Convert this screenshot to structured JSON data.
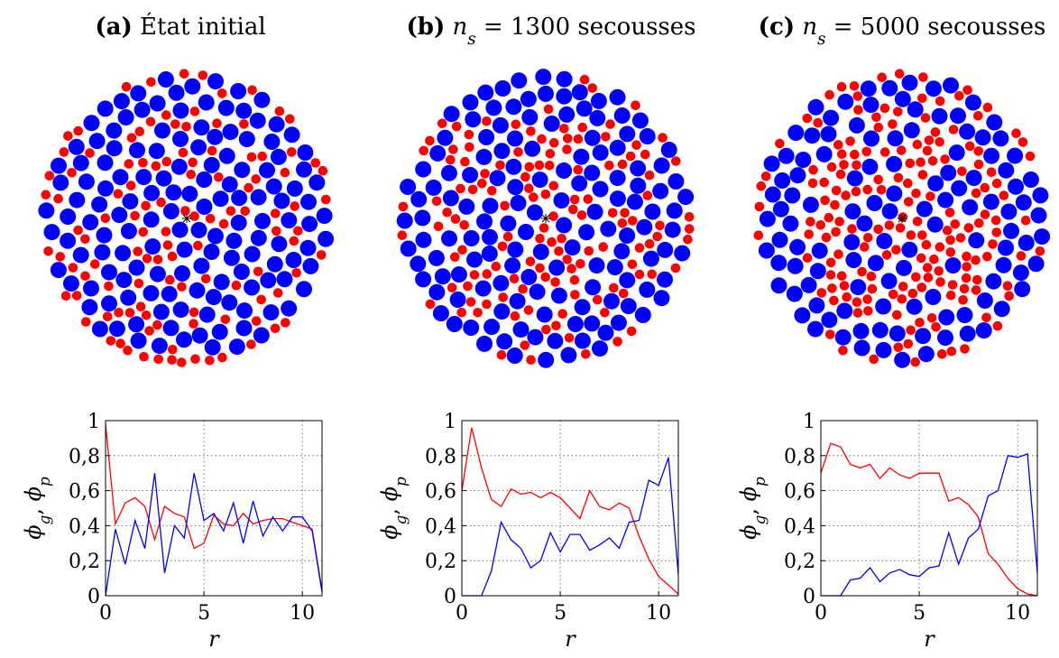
{
  "chart_data": [
    {
      "type": "line",
      "title": [
        {
          "text": "(a)",
          "style": "bold"
        },
        {
          "text": " État initial",
          "style": "normal"
        }
      ],
      "x": [
        0,
        0.5,
        1,
        1.5,
        2,
        2.5,
        3,
        3.5,
        4,
        4.5,
        5,
        5.5,
        6,
        6.5,
        7,
        7.5,
        8,
        8.5,
        9,
        9.5,
        10,
        10.5,
        11
      ],
      "series": [
        {
          "color": "#ff0000",
          "values": [
            0.98,
            0.41,
            0.53,
            0.56,
            0.51,
            0.32,
            0.51,
            0.47,
            0.45,
            0.27,
            0.3,
            0.46,
            0.41,
            0.4,
            0.47,
            0.41,
            0.43,
            0.44,
            0.44,
            0.42,
            0.4,
            0.38,
            0.03
          ]
        },
        {
          "color": "#0000ff",
          "values": [
            0,
            0.38,
            0.18,
            0.43,
            0.27,
            0.7,
            0.13,
            0.4,
            0.33,
            0.7,
            0.43,
            0.47,
            0.37,
            0.53,
            0.3,
            0.54,
            0.34,
            0.45,
            0.37,
            0.45,
            0.45,
            0.37,
            0.02
          ]
        }
      ],
      "xlim": [
        0,
        11
      ],
      "ylim": [
        0,
        1
      ],
      "xticks": [
        0,
        5,
        10
      ],
      "yticks": [
        0,
        {
          "value": 0.2,
          "label": "0,2"
        },
        {
          "value": 0.4,
          "label": "0,4"
        },
        {
          "value": 0.6,
          "label": "0,6"
        },
        {
          "value": 0.8,
          "label": "0,8"
        },
        1
      ],
      "xlabel": "r",
      "ylabel": [
        {
          "text": "ϕ",
          "style": "italic"
        },
        {
          "text": "g",
          "style": "sub"
        },
        {
          "text": ", ",
          "style": "normal"
        },
        {
          "text": "ϕ",
          "style": "italic"
        },
        {
          "text": "p",
          "style": "sub"
        }
      ],
      "grid": true
    },
    {
      "type": "line",
      "title": [
        {
          "text": "(b)",
          "style": "bold"
        },
        {
          "text": " ",
          "style": "normal"
        },
        {
          "text": "n",
          "style": "italic"
        },
        {
          "text": "s",
          "style": "sub"
        },
        {
          "text": " = 1300 secousses",
          "style": "normal"
        }
      ],
      "x": [
        0,
        0.5,
        1,
        1.5,
        2,
        2.5,
        3,
        3.5,
        4,
        4.5,
        5,
        5.5,
        6,
        6.5,
        7,
        7.5,
        8,
        8.5,
        9,
        9.5,
        10,
        10.5,
        11
      ],
      "series": [
        {
          "color": "#ff0000",
          "values": [
            0.6,
            0.96,
            0.73,
            0.55,
            0.51,
            0.61,
            0.58,
            0.59,
            0.56,
            0.59,
            0.56,
            0.5,
            0.44,
            0.6,
            0.51,
            0.49,
            0.53,
            0.5,
            0.34,
            0.21,
            0.11,
            0.06,
            0.01
          ]
        },
        {
          "color": "#0000ff",
          "values": [
            0,
            0,
            0,
            0.14,
            0.42,
            0.32,
            0.27,
            0.16,
            0.2,
            0.36,
            0.25,
            0.35,
            0.35,
            0.26,
            0.29,
            0.33,
            0.27,
            0.42,
            0.43,
            0.66,
            0.63,
            0.79,
            0.12
          ]
        }
      ],
      "xlim": [
        0,
        11
      ],
      "ylim": [
        0,
        1
      ],
      "xticks": [
        0,
        5,
        10
      ],
      "yticks": [
        0,
        {
          "value": 0.2,
          "label": "0,2"
        },
        {
          "value": 0.4,
          "label": "0,4"
        },
        {
          "value": 0.6,
          "label": "0,6"
        },
        {
          "value": 0.8,
          "label": "0,8"
        },
        1
      ],
      "xlabel": "r",
      "ylabel": [
        {
          "text": "ϕ",
          "style": "italic"
        },
        {
          "text": "g",
          "style": "sub"
        },
        {
          "text": ", ",
          "style": "normal"
        },
        {
          "text": "ϕ",
          "style": "italic"
        },
        {
          "text": "p",
          "style": "sub"
        }
      ],
      "grid": true
    },
    {
      "type": "line",
      "title": [
        {
          "text": "(c)",
          "style": "bold"
        },
        {
          "text": " ",
          "style": "normal"
        },
        {
          "text": "n",
          "style": "italic"
        },
        {
          "text": "s",
          "style": "sub"
        },
        {
          "text": " = 5000 secousses",
          "style": "normal"
        }
      ],
      "x": [
        0,
        0.5,
        1,
        1.5,
        2,
        2.5,
        3,
        3.5,
        4,
        4.5,
        5,
        5.5,
        6,
        6.5,
        7,
        7.5,
        8,
        8.5,
        9,
        9.5,
        10,
        10.5,
        11
      ],
      "series": [
        {
          "color": "#ff0000",
          "values": [
            0.7,
            0.87,
            0.85,
            0.75,
            0.73,
            0.75,
            0.67,
            0.73,
            0.69,
            0.67,
            0.7,
            0.7,
            0.7,
            0.54,
            0.56,
            0.52,
            0.45,
            0.24,
            0.18,
            0.1,
            0.04,
            0.01,
            0
          ]
        },
        {
          "color": "#0000ff",
          "values": [
            0,
            0,
            0,
            0.09,
            0.1,
            0.16,
            0.08,
            0.13,
            0.15,
            0.12,
            0.11,
            0.16,
            0.17,
            0.36,
            0.18,
            0.33,
            0.38,
            0.57,
            0.6,
            0.8,
            0.79,
            0.81,
            0.13
          ]
        }
      ],
      "xlim": [
        0,
        11
      ],
      "ylim": [
        0,
        1
      ],
      "xticks": [
        0,
        5,
        10
      ],
      "yticks": [
        0,
        {
          "value": 0.2,
          "label": "0,2"
        },
        {
          "value": 0.4,
          "label": "0,4"
        },
        {
          "value": 0.6,
          "label": "0,6"
        },
        {
          "value": 0.8,
          "label": "0,8"
        },
        1
      ],
      "xlabel": "r",
      "ylabel": [
        {
          "text": "ϕ",
          "style": "italic"
        },
        {
          "text": "g",
          "style": "sub"
        },
        {
          "text": ", ",
          "style": "normal"
        },
        {
          "text": "ϕ",
          "style": "italic"
        },
        {
          "text": "p",
          "style": "sub"
        }
      ],
      "grid": true
    }
  ]
}
